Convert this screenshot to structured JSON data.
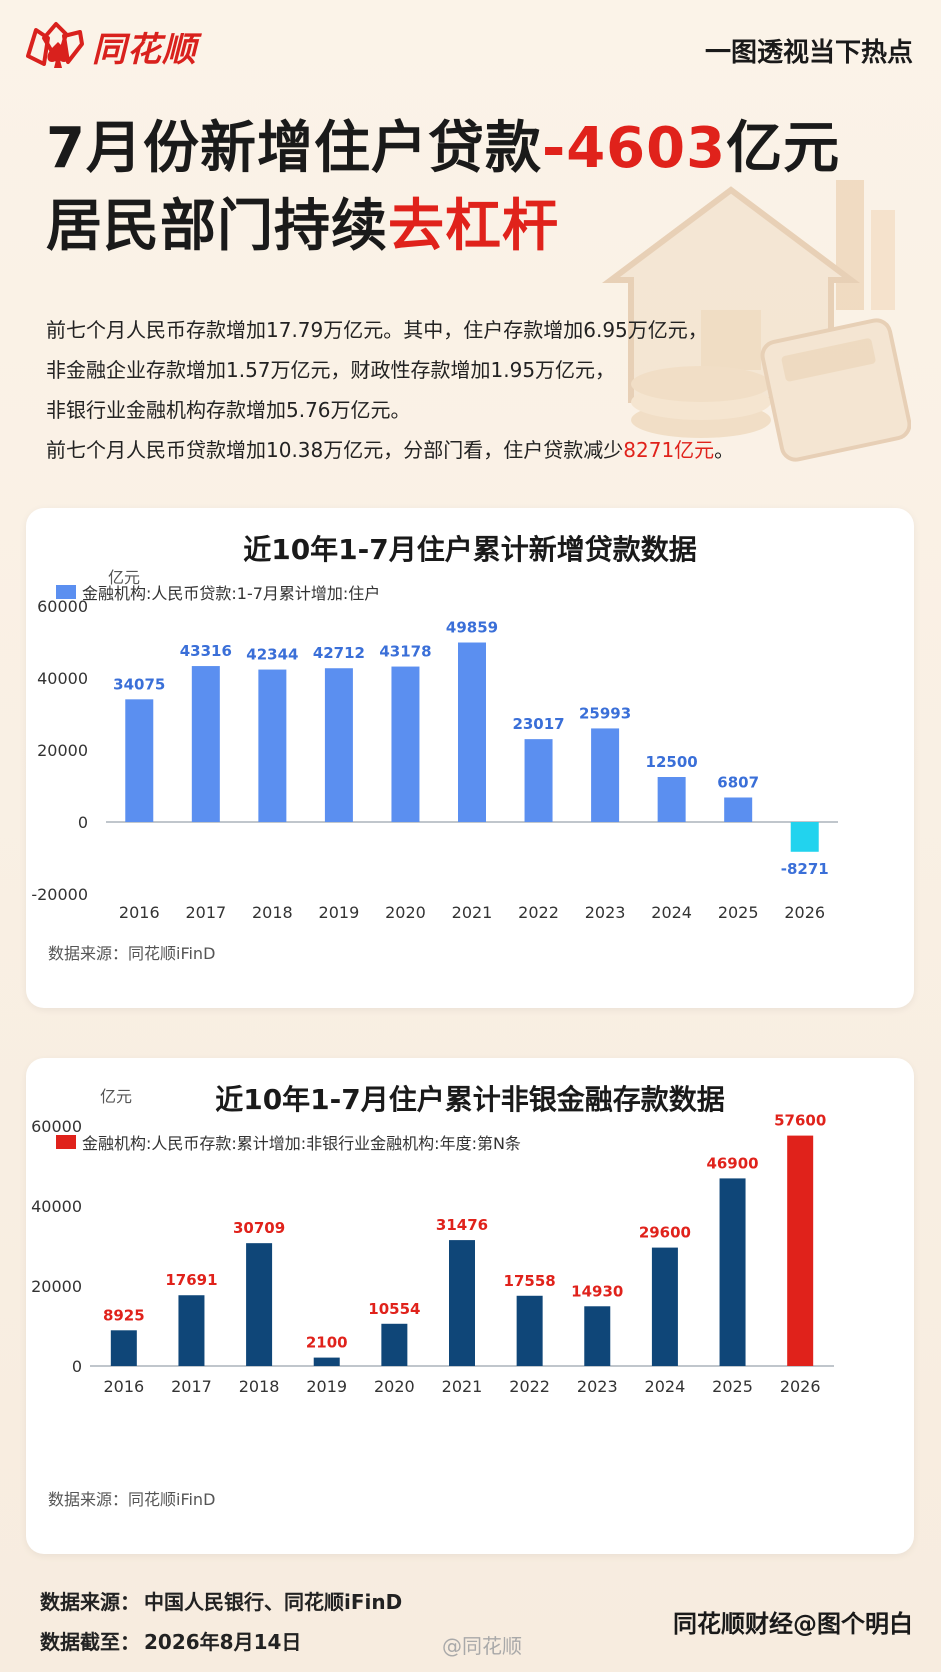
{
  "header": {
    "logo_text": "同花顺",
    "tagline": "一图透视当下热点"
  },
  "headline": {
    "line1_a": "7月份新增住户贷款",
    "line1_b": "-4603",
    "line1_c": "亿元",
    "line2_a": "居民部门持续",
    "line2_b": "去杠杆"
  },
  "intro": {
    "p1": "前七个月人民币存款增加17.79万亿元。其中，住户存款增加6.95万亿元，",
    "p2": "非金融企业存款增加1.57万亿元，财政性存款增加1.95万亿元，",
    "p3": "非银行业金融机构存款增加5.76万亿元。",
    "p4_a": "前七个月人民币贷款增加10.38万亿元，分部门看，住户贷款减少",
    "p4_b": "8271亿元",
    "p4_c": "。"
  },
  "colors": {
    "accent_red": "#e0221b",
    "bar_blue": "#5b8ff0",
    "bar_cyan": "#22d3ee",
    "bar_navy": "#0f4678",
    "label_blue": "#3a6fd8",
    "label_red": "#e0221b"
  },
  "chart_data": [
    {
      "type": "bar",
      "title": "近10年1-7月住户累计新增贷款数据",
      "legend": "金融机构:人民币贷款:1-7月累计增加:住户",
      "ylabel": "亿元",
      "source": "数据来源：同花顺iFinD",
      "categories": [
        "2016",
        "2017",
        "2018",
        "2019",
        "2020",
        "2021",
        "2022",
        "2023",
        "2024",
        "2025",
        "2026"
      ],
      "values": [
        34075,
        43316,
        42344,
        42712,
        43178,
        49859,
        23017,
        25993,
        12500,
        6807,
        -8271
      ],
      "yticks": [
        60000,
        40000,
        20000,
        0,
        -20000
      ],
      "ylim": [
        -20000,
        60000
      ],
      "grid": false,
      "legend_position": "top-left"
    },
    {
      "type": "bar",
      "title": "近10年1-7月住户累计非银金融存款数据",
      "legend": "金融机构:人民币存款:累计增加:非银行业金融机构:年度:第N条",
      "ylabel": "亿元",
      "source": "数据来源：同花顺iFinD",
      "categories": [
        "2016",
        "2017",
        "2018",
        "2019",
        "2020",
        "2021",
        "2022",
        "2023",
        "2024",
        "2025",
        "2026"
      ],
      "values": [
        8925,
        17691,
        30709,
        2100,
        10554,
        31476,
        17558,
        14930,
        29600,
        46900,
        57600
      ],
      "yticks": [
        60000,
        40000,
        20000,
        0
      ],
      "ylim": [
        0,
        60000
      ],
      "grid": false,
      "legend_position": "top-left"
    }
  ],
  "footer": {
    "source_label": "数据来源：",
    "source_value": "中国人民银行、同花顺iFinD",
    "date_label": "数据截至：",
    "date_value": "2026年8月14日",
    "credit": "同花顺财经@图个明白",
    "watermark": "@同花顺"
  }
}
